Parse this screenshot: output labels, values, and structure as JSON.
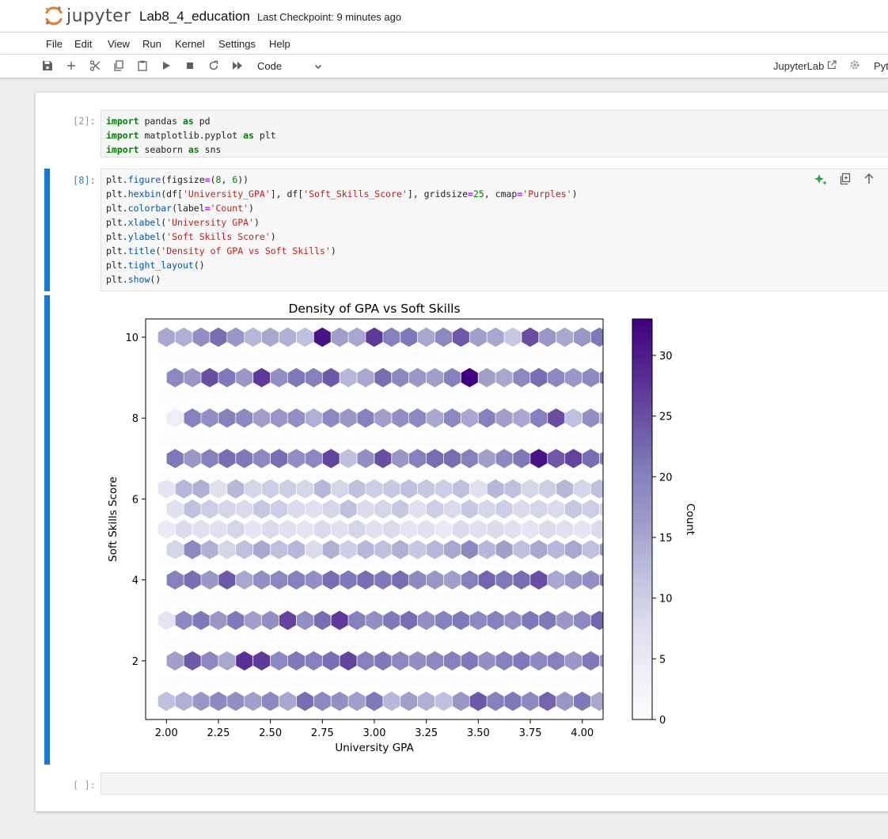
{
  "app": {
    "logo_text": "jupyter",
    "notebook_title": "Lab8_4_education",
    "checkpoint": "Last Checkpoint: 9 minutes ago",
    "menu": [
      "File",
      "Edit",
      "View",
      "Run",
      "Kernel",
      "Settings",
      "Help"
    ],
    "cell_type": "Code",
    "jupyterlab_link": "JupyterLab",
    "kernel_name": "Pyt"
  },
  "cells": [
    {
      "prompt": "[2]:",
      "code": [
        [
          [
            "kw",
            "import"
          ],
          [
            "t",
            " pandas "
          ],
          [
            "kw",
            "as"
          ],
          [
            "t",
            " pd"
          ]
        ],
        [
          [
            "kw",
            "import"
          ],
          [
            "t",
            " matplotlib.pyplot "
          ],
          [
            "kw",
            "as"
          ],
          [
            "t",
            " plt"
          ]
        ],
        [
          [
            "kw",
            "import"
          ],
          [
            "t",
            " seaborn "
          ],
          [
            "kw",
            "as"
          ],
          [
            "t",
            " sns"
          ]
        ]
      ]
    },
    {
      "prompt": "[8]:",
      "code": [
        [
          [
            "t",
            "plt."
          ],
          [
            "fn",
            "figure"
          ],
          [
            "t",
            "(figsize"
          ],
          [
            "op",
            "="
          ],
          [
            "t",
            "("
          ],
          [
            "num",
            "8"
          ],
          [
            "t",
            ", "
          ],
          [
            "num",
            "6"
          ],
          [
            "t",
            "))"
          ]
        ],
        [
          [
            "t",
            "plt."
          ],
          [
            "fn",
            "hexbin"
          ],
          [
            "t",
            "(df["
          ],
          [
            "str",
            "'University_GPA'"
          ],
          [
            "t",
            "], df["
          ],
          [
            "str",
            "'Soft_Skills_Score'"
          ],
          [
            "t",
            "], gridsize"
          ],
          [
            "op",
            "="
          ],
          [
            "num",
            "25"
          ],
          [
            "t",
            ", cmap"
          ],
          [
            "op",
            "="
          ],
          [
            "str",
            "'Purples'"
          ],
          [
            "t",
            ")"
          ]
        ],
        [
          [
            "t",
            "plt."
          ],
          [
            "fn",
            "colorbar"
          ],
          [
            "t",
            "(label"
          ],
          [
            "op",
            "="
          ],
          [
            "str",
            "'Count'"
          ],
          [
            "t",
            ")"
          ]
        ],
        [
          [
            "t",
            "plt."
          ],
          [
            "fn",
            "xlabel"
          ],
          [
            "t",
            "("
          ],
          [
            "str",
            "'University GPA'"
          ],
          [
            "t",
            ")"
          ]
        ],
        [
          [
            "t",
            "plt."
          ],
          [
            "fn",
            "ylabel"
          ],
          [
            "t",
            "("
          ],
          [
            "str",
            "'Soft Skills Score'"
          ],
          [
            "t",
            ")"
          ]
        ],
        [
          [
            "t",
            "plt."
          ],
          [
            "fn",
            "title"
          ],
          [
            "t",
            "("
          ],
          [
            "str",
            "'Density of GPA vs Soft Skills'"
          ],
          [
            "t",
            ")"
          ]
        ],
        [
          [
            "t",
            "plt."
          ],
          [
            "fn",
            "tight_layout"
          ],
          [
            "t",
            "()"
          ]
        ],
        [
          [
            "t",
            "plt."
          ],
          [
            "fn",
            "show"
          ],
          [
            "t",
            "()"
          ]
        ]
      ]
    },
    {
      "prompt": "[ ]:",
      "code": []
    }
  ],
  "chart_data": {
    "type": "hexbin",
    "title": "Density of GPA vs Soft Skills",
    "xlabel": "University GPA",
    "ylabel": "Soft Skills Score",
    "colorbar_label": "Count",
    "cmap": "Purples",
    "xlim": [
      1.9,
      4.1
    ],
    "ylim": [
      0.55,
      10.45
    ],
    "x_ticks": [
      "2.00",
      "2.25",
      "2.50",
      "2.75",
      "3.00",
      "3.25",
      "3.50",
      "3.75",
      "4.00"
    ],
    "y_ticks": [
      "2",
      "4",
      "6",
      "8",
      "10"
    ],
    "colorbar_ticks": [
      "0",
      "5",
      "10",
      "15",
      "20",
      "25",
      "30"
    ],
    "colorbar_range": [
      0,
      33
    ],
    "gpa_start": 2.0,
    "gpa_step": 0.0833,
    "rows": [
      {
        "y": 10,
        "offset": 0,
        "counts": [
          15,
          14,
          18,
          22,
          17,
          13,
          15,
          14,
          12,
          31,
          16,
          15,
          27,
          20,
          21,
          15,
          19,
          24,
          16,
          15,
          11,
          25,
          17,
          15,
          17,
          21,
          13,
          7
        ]
      },
      {
        "y": 9,
        "offset": 1,
        "counts": [
          19,
          17,
          25,
          21,
          17,
          27,
          18,
          21,
          20,
          24,
          13,
          15,
          22,
          19,
          17,
          16,
          20,
          33,
          16,
          15,
          19,
          22,
          19,
          17,
          19,
          21,
          20
        ]
      },
      {
        "y": 8,
        "offset": 1,
        "counts": [
          4,
          20,
          18,
          20,
          19,
          16,
          17,
          18,
          14,
          19,
          17,
          20,
          16,
          18,
          19,
          15,
          19,
          15,
          20,
          16,
          15,
          20,
          25,
          12,
          18,
          15,
          20,
          28,
          10
        ]
      },
      {
        "y": 7,
        "offset": 1,
        "counts": [
          21,
          17,
          20,
          22,
          21,
          19,
          22,
          18,
          19,
          26,
          12,
          18,
          25,
          17,
          20,
          22,
          22,
          20,
          16,
          19,
          21,
          31,
          24,
          26,
          22,
          20,
          17,
          23,
          22
        ]
      },
      {
        "y": 6.25,
        "offset": 0,
        "counts": [
          6,
          13,
          14,
          7,
          13,
          9,
          10,
          10,
          9,
          13,
          9,
          12,
          10,
          11,
          12,
          11,
          10,
          12,
          7,
          13,
          12,
          9,
          10,
          13,
          9,
          12,
          10,
          11,
          12
        ]
      },
      {
        "y": 5.75,
        "offset": 1,
        "counts": [
          7,
          12,
          10,
          9,
          8,
          11,
          10,
          8,
          7,
          9,
          12,
          8,
          9,
          11,
          7,
          10,
          8,
          11,
          9,
          10,
          8,
          9,
          8,
          11,
          10,
          9,
          8,
          13
        ]
      },
      {
        "y": 5.25,
        "offset": 0,
        "counts": [
          5,
          8,
          7,
          7,
          9,
          6,
          8,
          7,
          6,
          8,
          7,
          9,
          7,
          8,
          6,
          7,
          5,
          8,
          7,
          8,
          7,
          6,
          8,
          7,
          6,
          8,
          5,
          12
        ]
      },
      {
        "y": 4.75,
        "offset": 1,
        "counts": [
          9,
          19,
          14,
          9,
          12,
          15,
          12,
          13,
          8,
          14,
          10,
          13,
          12,
          14,
          11,
          13,
          15,
          19,
          13,
          16,
          12,
          15,
          13,
          15,
          12,
          16,
          13,
          9
        ]
      },
      {
        "y": 4,
        "offset": 1,
        "counts": [
          20,
          22,
          17,
          24,
          15,
          18,
          19,
          20,
          18,
          22,
          21,
          22,
          21,
          22,
          19,
          17,
          16,
          20,
          23,
          21,
          22,
          25,
          15,
          17,
          18,
          20,
          21,
          19,
          24
        ]
      },
      {
        "y": 3,
        "offset": 0,
        "counts": [
          6,
          19,
          21,
          17,
          21,
          16,
          18,
          26,
          18,
          22,
          27,
          20,
          18,
          21,
          22,
          18,
          20,
          21,
          19,
          20,
          18,
          21,
          21,
          17,
          19,
          23,
          18,
          7
        ]
      },
      {
        "y": 2,
        "offset": 1,
        "counts": [
          16,
          24,
          19,
          15,
          28,
          27,
          19,
          21,
          20,
          22,
          26,
          20,
          21,
          19,
          18,
          19,
          20,
          21,
          18,
          20,
          21,
          19,
          20,
          17,
          21,
          16,
          24,
          22
        ]
      },
      {
        "y": 1,
        "offset": 0,
        "counts": [
          12,
          14,
          17,
          19,
          18,
          16,
          19,
          15,
          22,
          19,
          18,
          16,
          21,
          13,
          16,
          14,
          12,
          17,
          24,
          20,
          21,
          19,
          23,
          17,
          21,
          15,
          18,
          14,
          20,
          16,
          12
        ]
      }
    ]
  }
}
